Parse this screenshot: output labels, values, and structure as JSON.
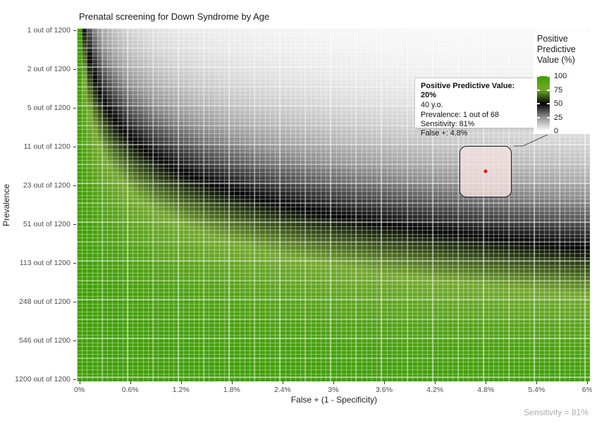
{
  "header": {
    "title": "Prenatal screening for Down Syndrome by Age"
  },
  "footnote": {
    "text": "Sensitivity = 81%"
  },
  "tooltip": {
    "title": "Positive Predictive Value: 20%",
    "lines": [
      "40 y.o.",
      "Prevalence: 1 out of 68",
      "Sensitivity: 81%",
      "False +: 4.8%"
    ]
  },
  "legend": {
    "title_lines": [
      "Positive",
      "Predictive",
      "Value (%)"
    ],
    "ticks": [
      "100",
      "75",
      "50",
      "25",
      "0"
    ]
  },
  "chart_data": {
    "type": "heatmap",
    "title": "Prenatal screening for Down Syndrome by Age",
    "xlabel": "False + (1 - Specificity)",
    "ylabel": "Prevalence",
    "x_ticks": [
      "0%",
      "0.6%",
      "1.2%",
      "1.8%",
      "2.4%",
      "3%",
      "3.6%",
      "4.2%",
      "4.8%",
      "5.4%",
      "6%"
    ],
    "y_ticks": [
      "1 out of 1200",
      "2 out of 1200",
      "5 out of 1200",
      "11 out of 1200",
      "23 out of 1200",
      "51 out of 1200",
      "113 out of 1200",
      "248 out of 1200",
      "546 out of 1200",
      "1200 out of 1200"
    ],
    "x_range": {
      "min_percent": 0,
      "max_percent": 6,
      "scale": "linear"
    },
    "y_range": {
      "min_prevalence": 0.0008333,
      "max_prevalence": 1,
      "scale": "log"
    },
    "sensitivity": 0.81,
    "value_function": "PPV = 100 * sens*prev / (sens*prev + fpr*(1-prev))",
    "grid": {
      "cols": 101,
      "rows": 91
    },
    "colormap": [
      {
        "value": 0,
        "color": "#ffffff"
      },
      {
        "value": 25,
        "color": "#929292"
      },
      {
        "value": 50,
        "color": "#030303"
      },
      {
        "value": 75,
        "color": "#74a82e"
      },
      {
        "value": 100,
        "color": "#3f9e06"
      }
    ],
    "legend_ticks": [
      100,
      75,
      50,
      25,
      0
    ],
    "highlight": {
      "fpr_percent": 4.8,
      "prevalence": 0.0147,
      "prevalence_label": "1 out of 68",
      "age": "40 y.o.",
      "ppv_percent": 20,
      "marker_color": "#e8120c"
    }
  }
}
